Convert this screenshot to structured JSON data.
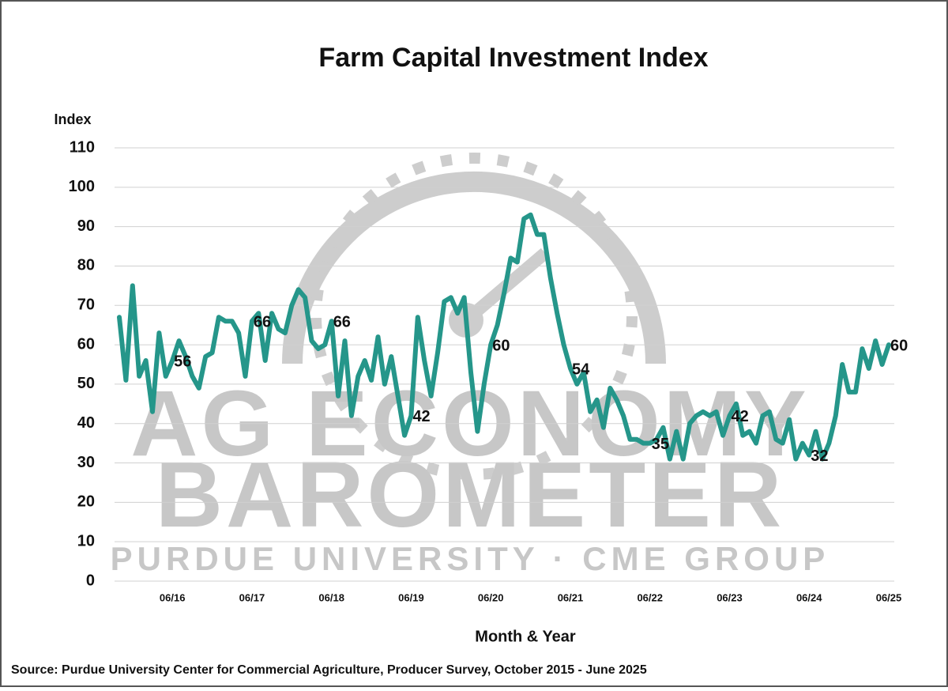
{
  "chart_data": {
    "type": "line",
    "title": "Farm Capital Investment Index",
    "y_axis_label": "Index",
    "x_axis_label": "Month & Year",
    "source": "Source: Purdue University Center for Commercial Agriculture, Producer Survey, October 2015 - June 2025",
    "watermark": [
      "AG ECONOMY",
      "BAROMETER",
      "PURDUE UNIVERSITY · CME GROUP"
    ],
    "categories": [
      null,
      null,
      null,
      null,
      null,
      null,
      null,
      null,
      "06/16",
      null,
      null,
      null,
      null,
      null,
      null,
      null,
      null,
      null,
      null,
      null,
      "06/17",
      null,
      null,
      null,
      null,
      null,
      null,
      null,
      null,
      null,
      null,
      null,
      "06/18",
      null,
      null,
      null,
      null,
      null,
      null,
      null,
      null,
      null,
      null,
      null,
      "06/19",
      null,
      null,
      null,
      null,
      null,
      null,
      null,
      null,
      null,
      null,
      null,
      "06/20",
      null,
      null,
      null,
      null,
      null,
      null,
      null,
      null,
      null,
      null,
      null,
      "06/21",
      null,
      null,
      null,
      null,
      null,
      null,
      null,
      null,
      null,
      null,
      null,
      "06/22",
      null,
      null,
      null,
      null,
      null,
      null,
      null,
      null,
      null,
      null,
      null,
      "06/23",
      null,
      null,
      null,
      null,
      null,
      null,
      null,
      null,
      null,
      null,
      null,
      "06/24",
      null,
      null,
      null,
      null,
      null,
      null,
      null,
      null,
      null,
      null,
      null,
      "06/25"
    ],
    "series": [
      {
        "name": "Farm Capital Investment Index",
        "color": "#25968a",
        "values": [
          67,
          51,
          75,
          52,
          56,
          43,
          63,
          52,
          56,
          61,
          57,
          52,
          49,
          57,
          58,
          67,
          66,
          66,
          63,
          52,
          66,
          68,
          56,
          68,
          64,
          63,
          70,
          74,
          72,
          61,
          59,
          60,
          66,
          47,
          61,
          42,
          52,
          56,
          51,
          62,
          50,
          57,
          47,
          37,
          42,
          67,
          56,
          47,
          58,
          71,
          72,
          68,
          72,
          53,
          38,
          50,
          60,
          65,
          73,
          82,
          81,
          92,
          93,
          88,
          88,
          77,
          68,
          60,
          54,
          50,
          53,
          43,
          46,
          39,
          49,
          46,
          42,
          36,
          36,
          35,
          35,
          36,
          39,
          31,
          38,
          31,
          40,
          42,
          43,
          42,
          43,
          37,
          42,
          45,
          37,
          38,
          35,
          42,
          43,
          36,
          35,
          41,
          31,
          35,
          32,
          38,
          31,
          35,
          42,
          55,
          48,
          48,
          59,
          54,
          61,
          55,
          60
        ]
      }
    ],
    "data_labels": [
      8,
      20,
      32,
      44,
      56,
      68,
      80,
      92,
      104,
      116
    ],
    "ylim": [
      0,
      110
    ],
    "yticks": [
      0,
      10,
      20,
      30,
      40,
      50,
      60,
      70,
      80,
      90,
      100,
      110
    ],
    "grid": true
  }
}
